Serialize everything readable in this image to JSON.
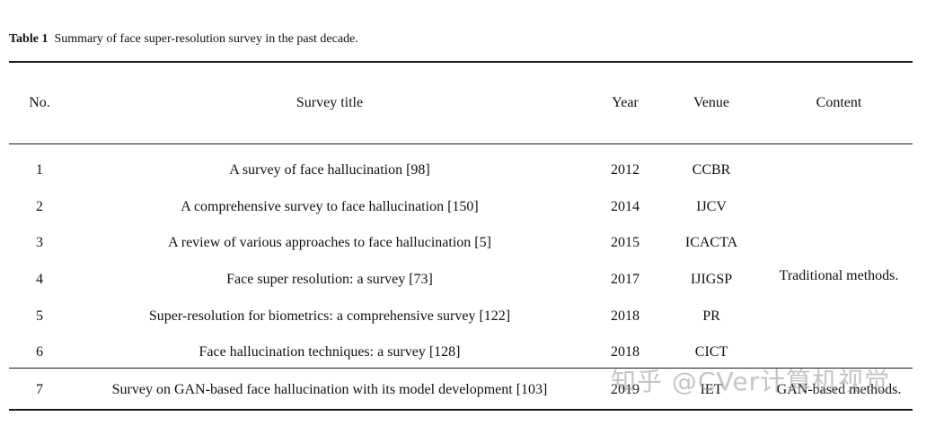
{
  "caption": {
    "label": "Table 1",
    "text": "Summary of face super-resolution survey in the past decade."
  },
  "table": {
    "headers": {
      "no": "No.",
      "title": "Survey title",
      "year": "Year",
      "venue": "Venue",
      "content": "Content"
    },
    "rows": [
      {
        "no": "1",
        "title": "A survey of face hallucination [98]",
        "year": "2012",
        "venue": "CCBR"
      },
      {
        "no": "2",
        "title": "A comprehensive survey to face hallucination [150]",
        "year": "2014",
        "venue": "IJCV"
      },
      {
        "no": "3",
        "title": "A review of various approaches to face hallucination [5]",
        "year": "2015",
        "venue": "ICACTA"
      },
      {
        "no": "4",
        "title": "Face super resolution: a survey  [73]",
        "year": "2017",
        "venue": "IJIGSP"
      },
      {
        "no": "5",
        "title": "Super-resolution for biometrics: a comprehensive survey [122]",
        "year": "2018",
        "venue": "PR"
      },
      {
        "no": "6",
        "title": "Face hallucination techniques: a survey [128]",
        "year": "2018",
        "venue": "CICT"
      },
      {
        "no": "7",
        "title": "Survey on GAN-based face hallucination with its model development [103]",
        "year": "2019",
        "venue": "IET"
      }
    ],
    "content_groups": {
      "traditional": "Traditional methods.",
      "gan": "GAN-based methods."
    }
  },
  "watermark": "知乎 @CVer计算机视觉"
}
